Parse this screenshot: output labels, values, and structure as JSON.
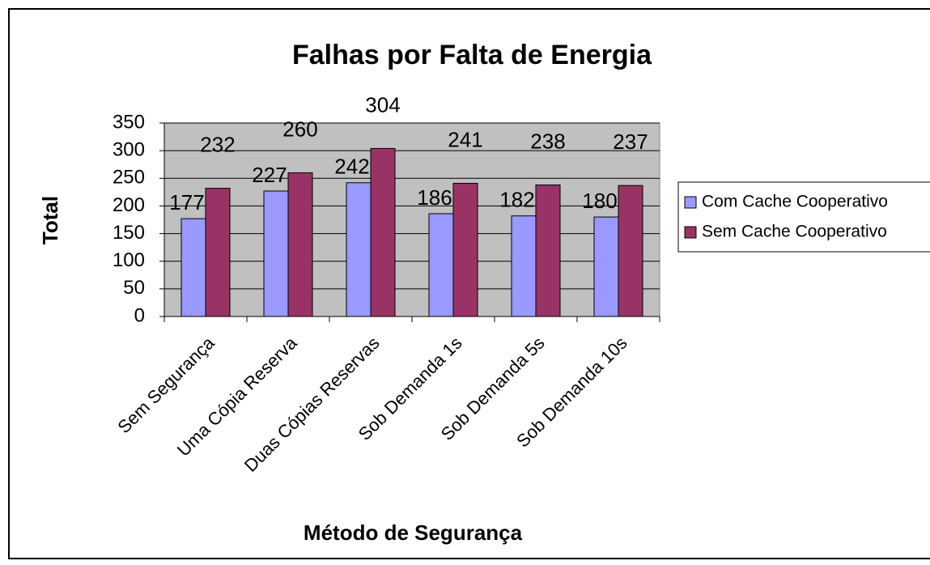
{
  "chart_data": {
    "type": "bar",
    "title": "Falhas por Falta de Energia",
    "x_label": "Método de Segurança",
    "y_label": "Total",
    "categories": [
      "Sem Segurança",
      "Uma Cópia Reserva",
      "Duas Cópias Reservas",
      "Sob Demanda 1s",
      "Sob Demanda 5s",
      "Sob Demanda 10s"
    ],
    "series": [
      {
        "name": "Com Cache Cooperativo",
        "color": "#9999ff",
        "values": [
          177,
          227,
          242,
          186,
          182,
          180
        ]
      },
      {
        "name": "Sem Cache Cooperativo",
        "color": "#993366",
        "values": [
          232,
          260,
          304,
          241,
          238,
          237
        ]
      }
    ],
    "ylim": [
      0,
      350
    ],
    "yticks": [
      0,
      50,
      100,
      150,
      200,
      250,
      300,
      350
    ],
    "grid": true,
    "legend": "right",
    "plot_background": "#c0c0c0"
  }
}
